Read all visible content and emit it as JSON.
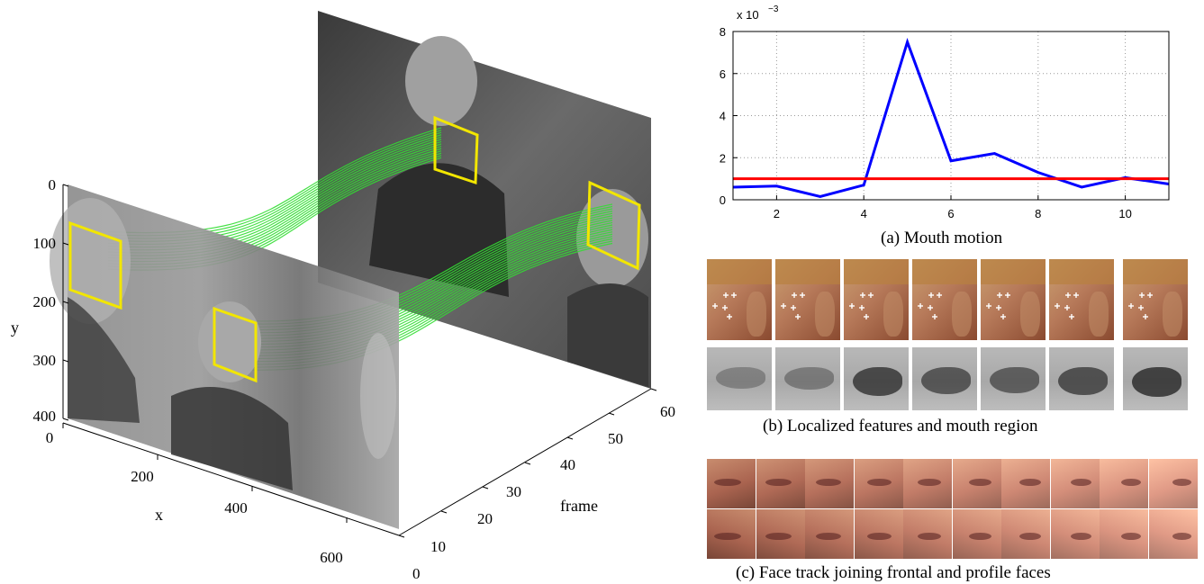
{
  "figure_3d": {
    "axis_y_label": "y",
    "axis_x_label": "x",
    "axis_frame_label": "frame",
    "y_ticks": [
      "0",
      "100",
      "200",
      "300",
      "400"
    ],
    "x_ticks": [
      "0",
      "200",
      "400",
      "600"
    ],
    "frame_ticks": [
      "0",
      "10",
      "20",
      "30",
      "40",
      "50",
      "60"
    ]
  },
  "chart_data": {
    "type": "line",
    "title": "",
    "exponent_label": "x 10",
    "exponent_power": "−3",
    "xlabel": "",
    "ylabel": "",
    "xlim": [
      1,
      11
    ],
    "ylim": [
      0,
      8
    ],
    "x_ticks": [
      2,
      4,
      6,
      8,
      10
    ],
    "y_ticks": [
      0,
      2,
      4,
      6,
      8
    ],
    "grid": true,
    "series": [
      {
        "color": "#0000ff",
        "x": [
          1,
          2,
          3,
          4,
          5,
          6,
          7,
          8,
          9,
          10,
          11
        ],
        "values": [
          0.6,
          0.65,
          0.15,
          0.7,
          7.5,
          1.85,
          2.2,
          1.3,
          0.6,
          1.05,
          0.75
        ]
      },
      {
        "color": "#ff0000",
        "x": [
          1,
          11
        ],
        "values": [
          1.0,
          1.0
        ]
      }
    ]
  },
  "captions": {
    "a": "(a) Mouth motion",
    "b": "(b) Localized features and mouth region",
    "c": "(c) Face track joining frontal and profile faces"
  },
  "colors": {
    "track_green": "#33dd33",
    "box_yellow": "#f2e600",
    "skin": "#b77a5a"
  }
}
